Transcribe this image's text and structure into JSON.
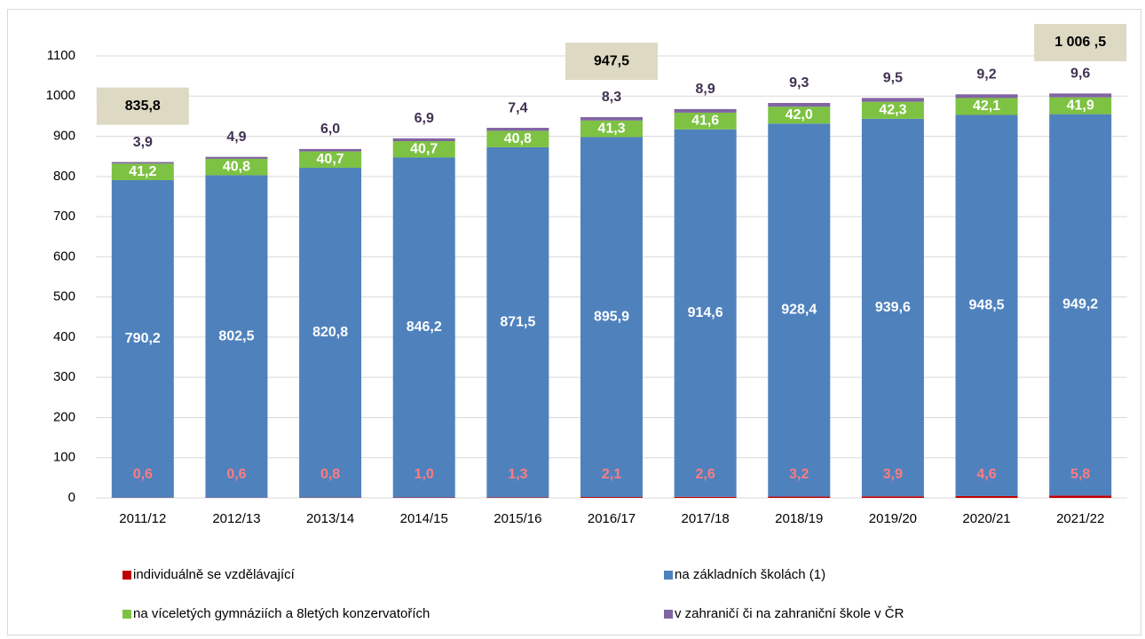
{
  "chart_data": {
    "type": "stacked_bar",
    "categories": [
      "2011/12",
      "2012/13",
      "2013/14",
      "2014/15",
      "2015/16",
      "2016/17",
      "2017/18",
      "2018/19",
      "2019/20",
      "2020/21",
      "2021/22"
    ],
    "series": [
      {
        "name": "individuálně se vzdělávající",
        "color": "#c00000",
        "label_color": "#ff7c80",
        "values": [
          0.6,
          0.6,
          0.8,
          1.0,
          1.3,
          2.1,
          2.6,
          3.2,
          3.9,
          4.6,
          5.8
        ],
        "value_labels": [
          "0,6",
          "0,6",
          "0,8",
          "1,0",
          "1,3",
          "2,1",
          "2,6",
          "3,2",
          "3,9",
          "4,6",
          "5,8"
        ]
      },
      {
        "name": "na základních školách (1)",
        "color": "#4f81bd",
        "label_color": "#ffffff",
        "values": [
          790.2,
          802.5,
          820.8,
          846.2,
          871.5,
          895.9,
          914.6,
          928.4,
          939.6,
          948.5,
          949.2
        ],
        "value_labels": [
          "790,2",
          "802,5",
          "820,8",
          "846,2",
          "871,5",
          "895,9",
          "914,6",
          "928,4",
          "939,6",
          "948,5",
          "949,2"
        ]
      },
      {
        "name": "na víceletých gymnáziích a 8letých konzervatořích",
        "color": "#7dc242",
        "label_color": "#ffffff",
        "values": [
          41.2,
          40.8,
          40.7,
          40.7,
          40.8,
          41.3,
          41.6,
          42.0,
          42.3,
          42.1,
          41.9
        ],
        "value_labels": [
          "41,2",
          "40,8",
          "40,7",
          "40,7",
          "40,8",
          "41,3",
          "41,6",
          "42,0",
          "42,3",
          "42,1",
          "41,9"
        ]
      },
      {
        "name": "v zahraničí či na zahraniční škole v ČR",
        "color": "#8064a2",
        "label_color": "#403152",
        "values": [
          3.9,
          4.9,
          6.0,
          6.9,
          7.4,
          8.3,
          8.9,
          9.3,
          9.5,
          9.2,
          9.6
        ],
        "value_labels": [
          "3,9",
          "4,9",
          "6,0",
          "6,9",
          "7,4",
          "8,3",
          "8,9",
          "9,3",
          "9,5",
          "9,2",
          "9,6"
        ]
      }
    ],
    "totals": {
      "values": [
        835.8,
        null,
        null,
        null,
        null,
        947.5,
        null,
        null,
        null,
        null,
        1006.5
      ],
      "value_labels": [
        "835,8",
        null,
        null,
        null,
        null,
        "947,5",
        null,
        null,
        null,
        null,
        "1 006 ,5"
      ]
    },
    "ylim": [
      0,
      1100
    ],
    "yticks": [
      0,
      100,
      200,
      300,
      400,
      500,
      600,
      700,
      800,
      900,
      1000,
      1100
    ],
    "grid": true
  }
}
